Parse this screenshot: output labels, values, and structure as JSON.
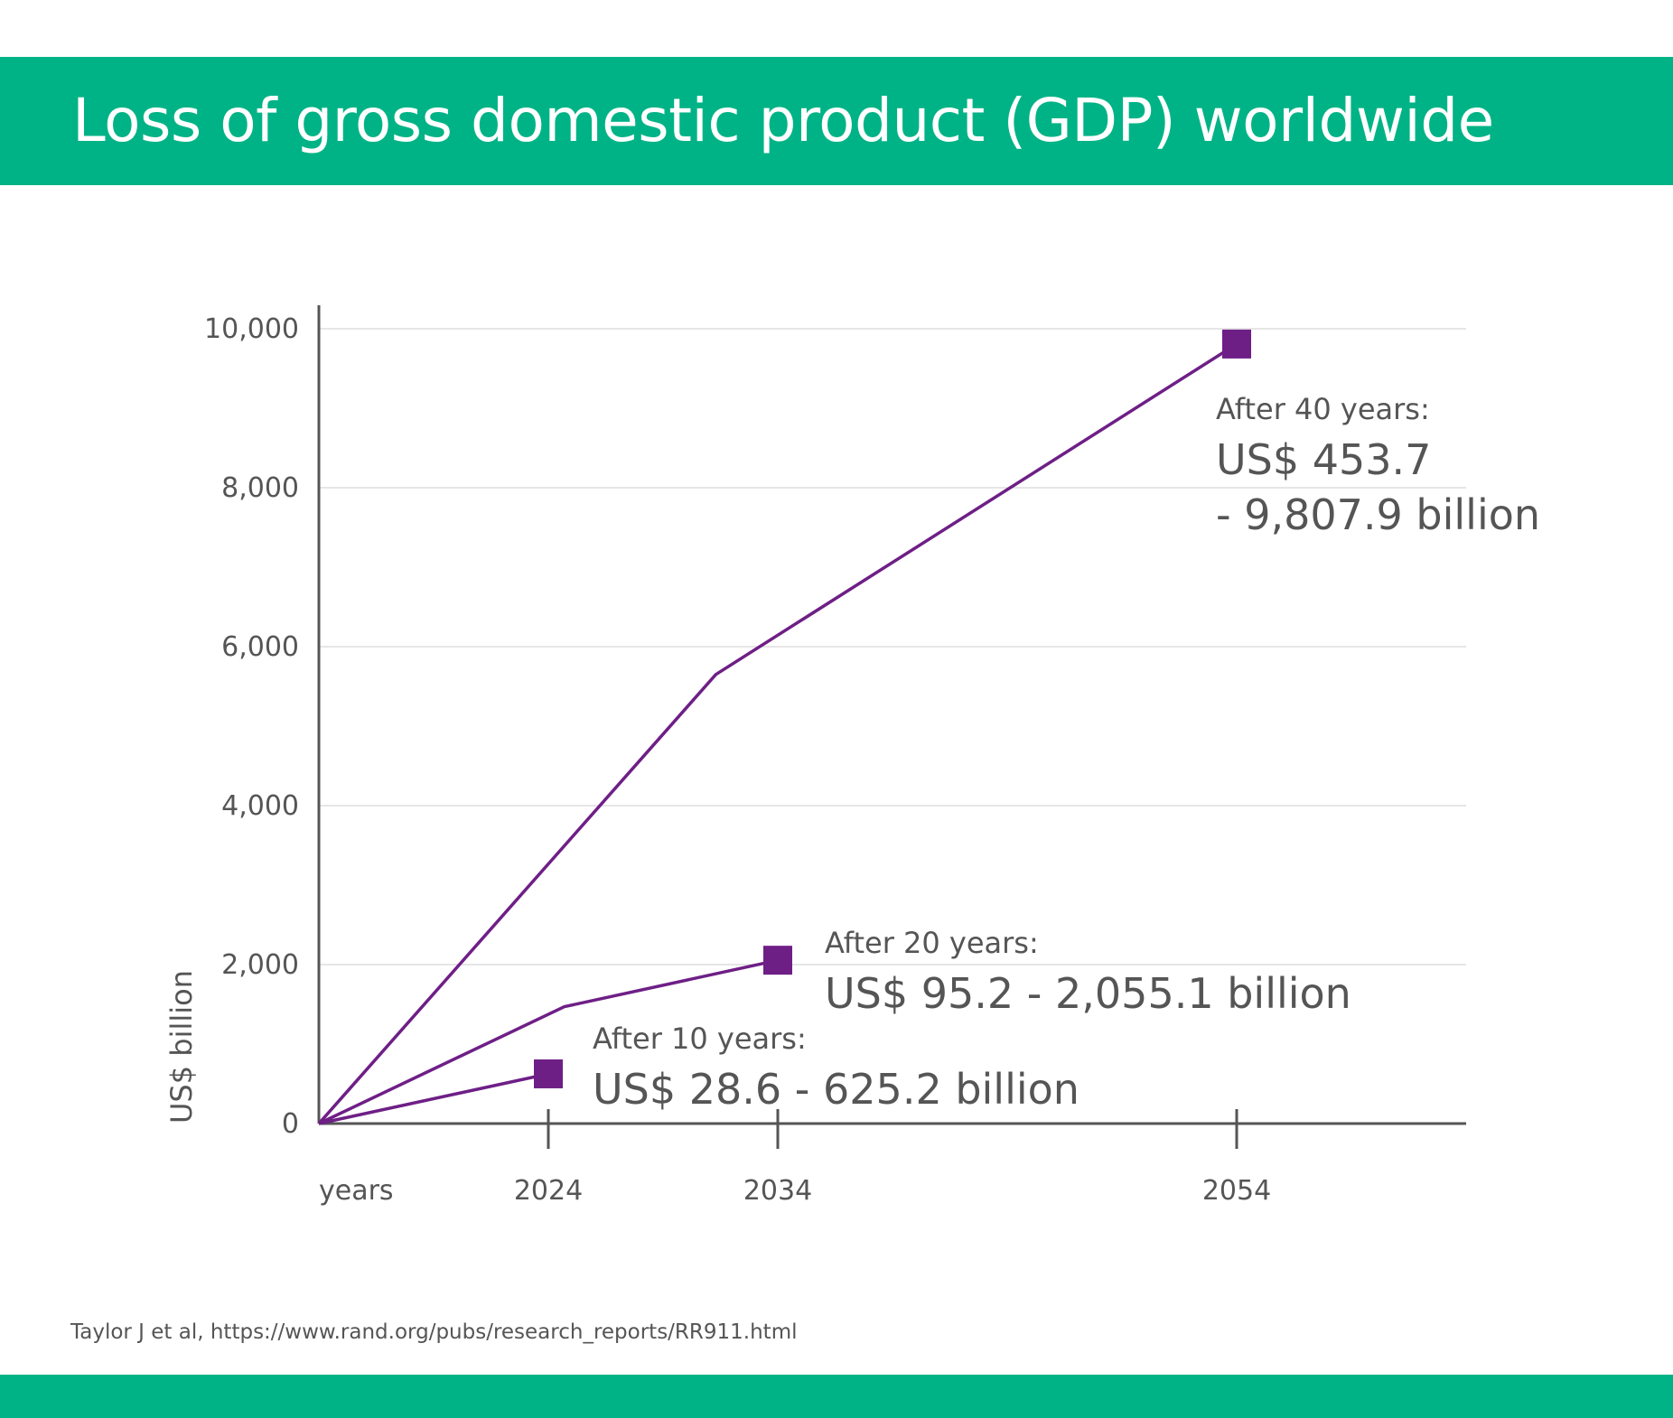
{
  "header": {
    "title": "Loss of gross domestic product (GDP) worldwide"
  },
  "footer": {
    "source": "Taylor J et al, https://www.rand.org/pubs/research_reports/RR911.html"
  },
  "colors": {
    "brand_green": "#00b386",
    "series_purple": "#6e1f86",
    "axis": "#555555",
    "grid": "#dddddd"
  },
  "chart_data": {
    "type": "line",
    "title": "",
    "xlabel": "years",
    "ylabel": "US$ billion",
    "xlim": [
      2014,
      2064
    ],
    "ylim": [
      0,
      10000
    ],
    "yticks": [
      0,
      2000,
      4000,
      6000,
      8000,
      10000
    ],
    "ytick_labels": [
      "0",
      "2,000",
      "4,000",
      "6,000",
      "8,000",
      "10,000"
    ],
    "xticks": [
      2024,
      2034,
      2054
    ],
    "xtick_labels": [
      "2024",
      "2034",
      "2054"
    ],
    "grid": true,
    "series": [
      {
        "x": [
          2014,
          2024
        ],
        "values": [
          0,
          625.2
        ],
        "end_marker": true,
        "annotation": {
          "line1": "After 10 years:",
          "line2": "US$ 28.6 - 625.2 billion"
        }
      },
      {
        "x": [
          2014,
          2024.7,
          2034
        ],
        "values": [
          0,
          1470,
          2055.1
        ],
        "end_marker": true,
        "annotation": {
          "line1": "After 20 years:",
          "line2": "US$ 95.2 - 2,055.1 billion"
        }
      },
      {
        "x": [
          2014,
          2031.3,
          2054
        ],
        "values": [
          0,
          5650,
          9807.9
        ],
        "end_marker": true,
        "annotation": {
          "line1": "After 40 years:",
          "line2": "US$ 453.7",
          "line3": "- 9,807.9 billion"
        }
      }
    ]
  }
}
